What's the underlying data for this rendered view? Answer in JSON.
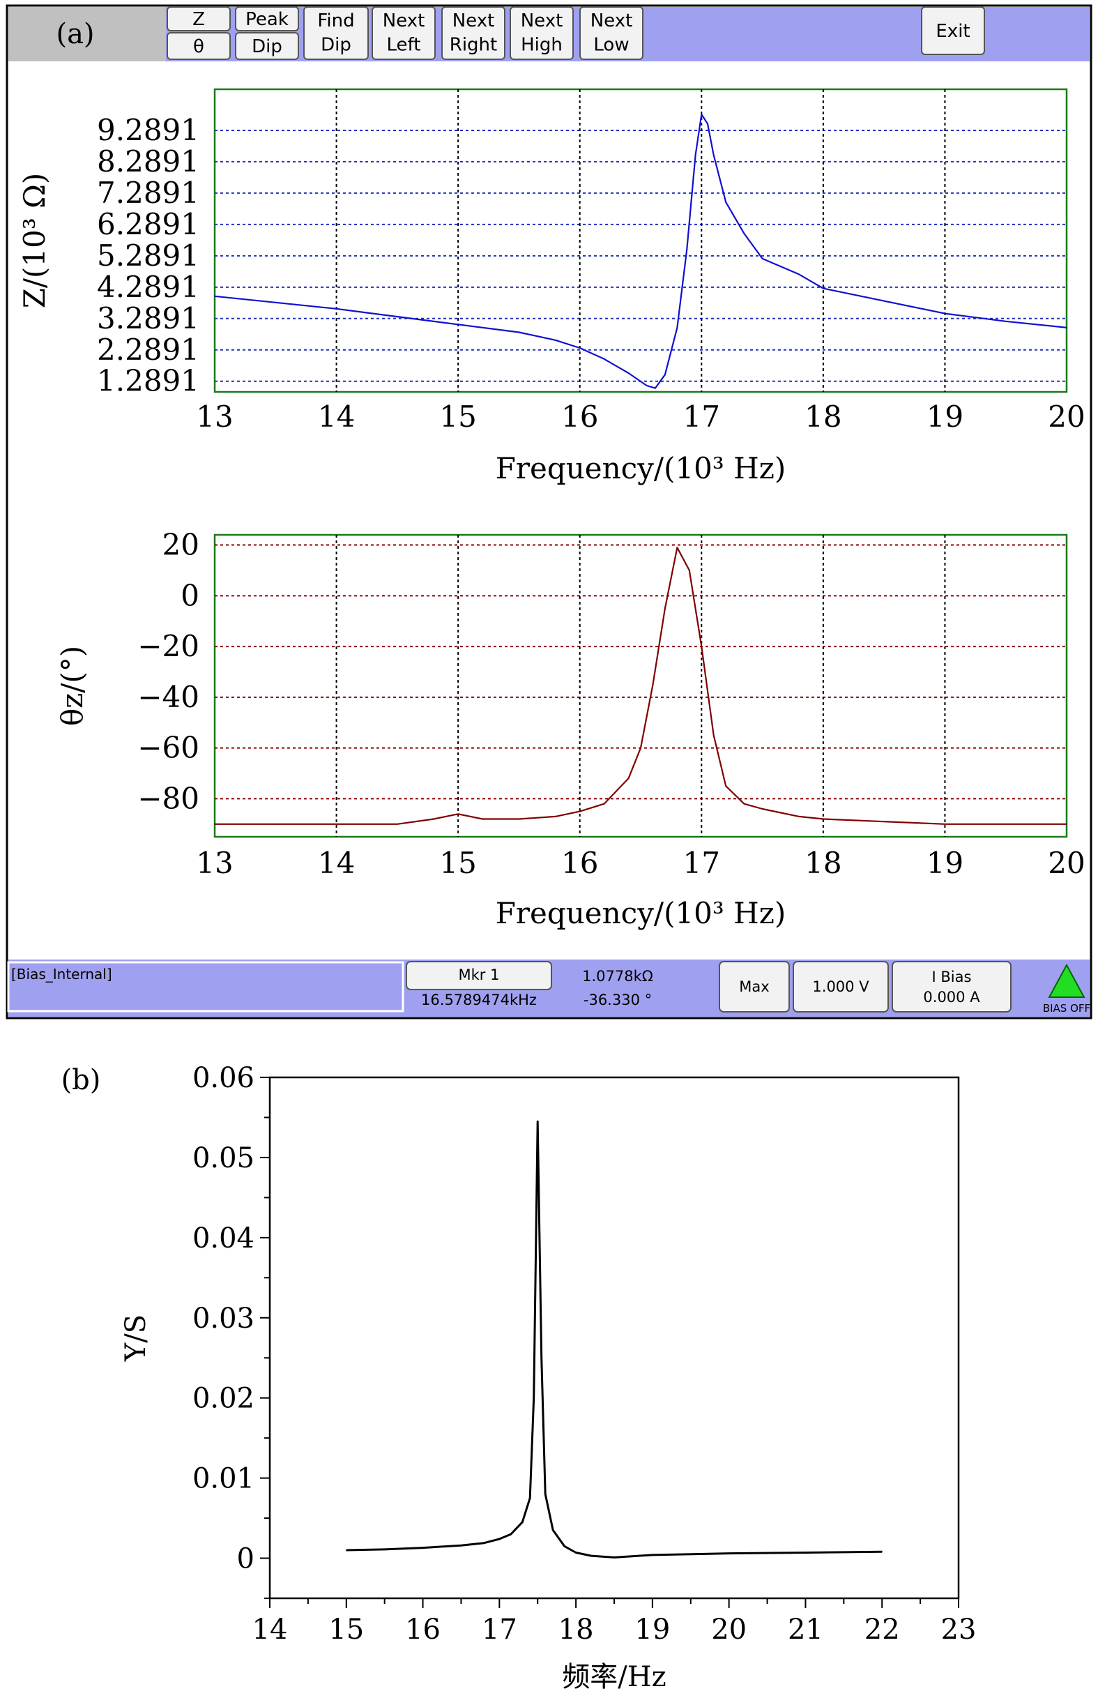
{
  "panel_a": {
    "label": "(a)",
    "toolbar": {
      "buttons": [
        {
          "name": "z-button",
          "lines": [
            "Z"
          ]
        },
        {
          "name": "theta-button",
          "lines": [
            "θ"
          ]
        },
        {
          "name": "peak-button",
          "lines": [
            "Peak"
          ]
        },
        {
          "name": "dip-button",
          "lines": [
            "Dip"
          ]
        },
        {
          "name": "find-dip-button",
          "lines": [
            "Find",
            "Dip"
          ]
        },
        {
          "name": "next-left-button",
          "lines": [
            "Next",
            "Left"
          ]
        },
        {
          "name": "next-right-button",
          "lines": [
            "Next",
            "Right"
          ]
        },
        {
          "name": "next-high-button",
          "lines": [
            "Next",
            "High"
          ]
        },
        {
          "name": "next-low-button",
          "lines": [
            "Next",
            "Low"
          ]
        },
        {
          "name": "exit-button",
          "lines": [
            "Exit"
          ]
        }
      ]
    },
    "status_bar": {
      "bias_field": "[Bias_Internal]",
      "marker_label": "Mkr 1",
      "marker_freq": "16.5789474kHz",
      "marker_impedance": "1.0778kΩ",
      "marker_phase": "-36.330 °",
      "max_label": "Max",
      "voltage": "1.000 V",
      "bias_label": "I Bias",
      "bias_value": "0.000 A",
      "bias_off": "BIAS OFF"
    }
  },
  "panel_b": {
    "label": "(b)"
  },
  "colors": {
    "toolbar_bg": "#a0a0f0",
    "impedance_trace": "#1010d0",
    "phase_trace": "#800000",
    "plot_border": "#1a7a1a",
    "plot_border_b": "#000000"
  },
  "chart_data": [
    {
      "id": "impedance",
      "type": "line",
      "xlabel": "Frequency/(10³ Hz)",
      "ylabel": "Z/(10³ Ω)",
      "xlim": [
        13,
        20
      ],
      "ylim": [
        0.95,
        10.6
      ],
      "xticks": [
        13,
        14,
        15,
        16,
        17,
        18,
        19,
        20
      ],
      "yticks": [
        1.2891,
        2.2891,
        3.2891,
        4.2891,
        5.2891,
        6.2891,
        7.2891,
        8.2891,
        9.2891
      ],
      "ytick_labels": [
        "1.2891",
        "2.2891",
        "3.2891",
        "4.2891",
        "5.2891",
        "6.2891",
        "7.2891",
        "8.2891",
        "9.2891"
      ],
      "grid": true,
      "series": [
        {
          "x": [
            13.0,
            13.5,
            14.0,
            14.5,
            15.0,
            15.5,
            15.8,
            16.0,
            16.2,
            16.4,
            16.55,
            16.62,
            16.7,
            16.8,
            16.88,
            16.95,
            17.0,
            17.05,
            17.1,
            17.2,
            17.35,
            17.5,
            17.8,
            18.0,
            18.5,
            19.0,
            19.5,
            20.0
          ],
          "y": [
            4.0,
            3.8,
            3.6,
            3.35,
            3.1,
            2.85,
            2.6,
            2.35,
            2.0,
            1.55,
            1.15,
            1.07,
            1.5,
            3.0,
            5.5,
            8.5,
            9.8,
            9.5,
            8.5,
            7.0,
            6.0,
            5.2,
            4.7,
            4.25,
            3.85,
            3.45,
            3.2,
            3.0
          ]
        }
      ]
    },
    {
      "id": "phase",
      "type": "line",
      "xlabel": "Frequency/(10³ Hz)",
      "ylabel": "θz/(°)",
      "xlim": [
        13,
        20
      ],
      "ylim": [
        -95,
        24
      ],
      "xticks": [
        13,
        14,
        15,
        16,
        17,
        18,
        19,
        20
      ],
      "yticks": [
        20,
        0,
        -20,
        -40,
        -60,
        -80
      ],
      "ytick_labels": [
        "20",
        "0",
        "−20",
        "−40",
        "−60",
        "−80"
      ],
      "grid": true,
      "series": [
        {
          "x": [
            13.0,
            13.5,
            14.0,
            14.5,
            14.8,
            15.0,
            15.2,
            15.5,
            15.8,
            16.0,
            16.2,
            16.4,
            16.5,
            16.6,
            16.7,
            16.8,
            16.9,
            17.0,
            17.1,
            17.2,
            17.35,
            17.5,
            17.8,
            18.0,
            18.5,
            19.0,
            20.0
          ],
          "y": [
            -90,
            -90,
            -90,
            -90,
            -88,
            -86,
            -88,
            -88,
            -87,
            -85,
            -82,
            -72,
            -60,
            -35,
            -5,
            19,
            10,
            -20,
            -55,
            -75,
            -82,
            -84,
            -87,
            -88,
            -89,
            -90,
            -90
          ]
        }
      ]
    },
    {
      "id": "admittance",
      "type": "line",
      "xlabel": "频率/Hz",
      "ylabel": "Y/S",
      "xlim": [
        14,
        23
      ],
      "ylim": [
        -0.005,
        0.06
      ],
      "xticks": [
        14,
        15,
        16,
        17,
        18,
        19,
        20,
        21,
        22,
        23
      ],
      "yticks": [
        0,
        0.01,
        0.02,
        0.03,
        0.04,
        0.05,
        0.06
      ],
      "ytick_labels": [
        "0",
        "0.01",
        "0.02",
        "0.03",
        "0.04",
        "0.05",
        "0.06"
      ],
      "grid": false,
      "series": [
        {
          "x": [
            15.0,
            15.5,
            16.0,
            16.5,
            16.8,
            17.0,
            17.15,
            17.3,
            17.4,
            17.45,
            17.5,
            17.55,
            17.6,
            17.7,
            17.85,
            18.0,
            18.2,
            18.5,
            19.0,
            20.0,
            21.0,
            22.0
          ],
          "y": [
            0.001,
            0.0011,
            0.0013,
            0.0016,
            0.0019,
            0.0024,
            0.003,
            0.0045,
            0.0075,
            0.02,
            0.0545,
            0.025,
            0.008,
            0.0035,
            0.0015,
            0.0007,
            0.0003,
            0.0001,
            0.0004,
            0.0006,
            0.0007,
            0.0008
          ]
        }
      ]
    }
  ]
}
